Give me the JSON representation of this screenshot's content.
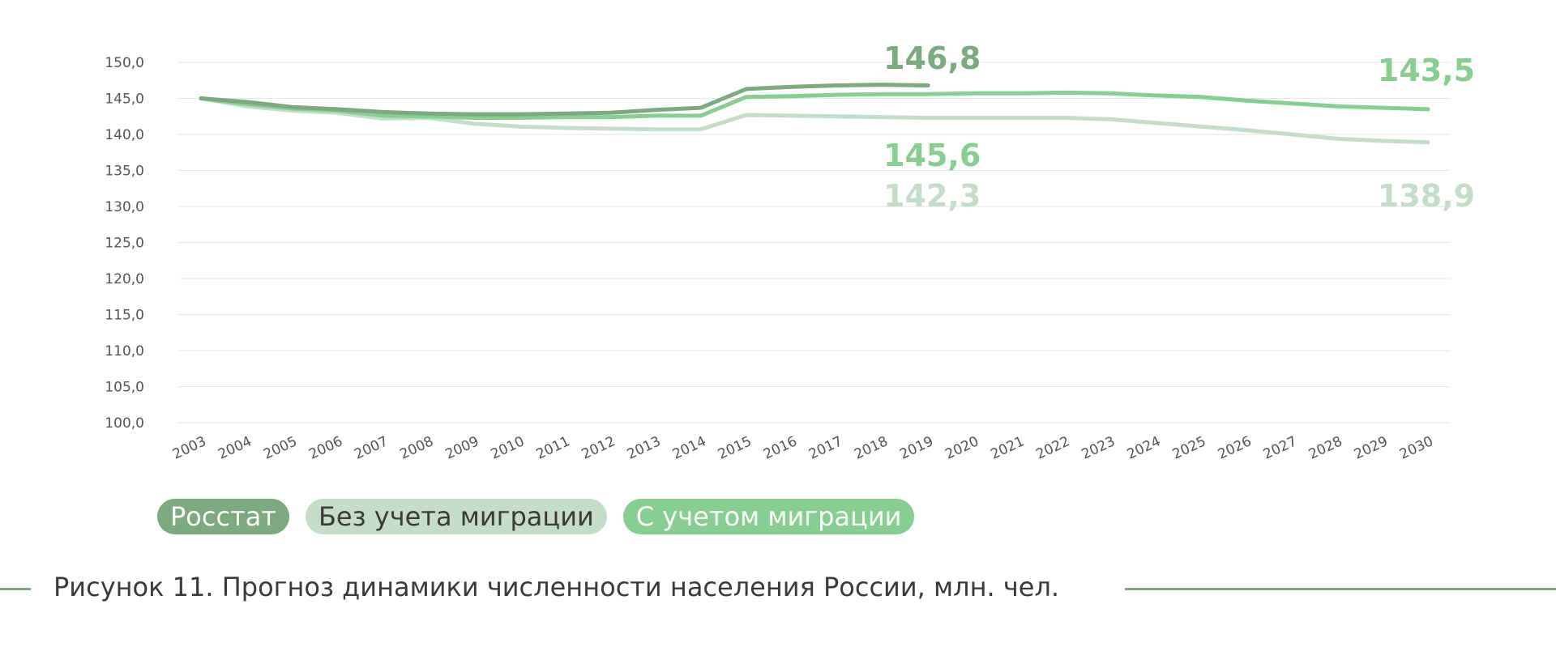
{
  "chart_data": {
    "type": "line",
    "categories": [
      "2003",
      "2004",
      "2005",
      "2006",
      "2007",
      "2008",
      "2009",
      "2010",
      "2011",
      "2012",
      "2013",
      "2014",
      "2015",
      "2016",
      "2017",
      "2018",
      "2019",
      "2020",
      "2021",
      "2022",
      "2023",
      "2024",
      "2025",
      "2026",
      "2027",
      "2028",
      "2029",
      "2030"
    ],
    "ylim": [
      100,
      150
    ],
    "yticks": [
      "100,0",
      "105,0",
      "110,0",
      "115,0",
      "120,0",
      "125,0",
      "130,0",
      "135,0",
      "140,0",
      "145,0",
      "150,0"
    ],
    "grid": true,
    "series": [
      {
        "name": "Росстат",
        "color": "#7aaa7e",
        "values": [
          145.0,
          144.5,
          143.8,
          143.5,
          143.1,
          142.9,
          142.8,
          142.8,
          142.9,
          143.0,
          143.4,
          143.7,
          146.3,
          146.6,
          146.8,
          146.9,
          146.8,
          null,
          null,
          null,
          null,
          null,
          null,
          null,
          null,
          null,
          null,
          null
        ]
      },
      {
        "name": "Без учета миграции",
        "color": "#c4ddc8",
        "values": [
          145.0,
          143.9,
          143.3,
          143.0,
          142.2,
          142.3,
          141.5,
          141.1,
          140.9,
          140.8,
          140.7,
          140.7,
          142.7,
          142.6,
          142.5,
          142.4,
          142.3,
          142.3,
          142.3,
          142.3,
          142.1,
          141.6,
          141.1,
          140.6,
          140.0,
          139.4,
          139.1,
          138.9
        ]
      },
      {
        "name": "С учетом миграции",
        "color": "#86cf90",
        "values": [
          145.0,
          144.2,
          143.6,
          143.3,
          142.6,
          142.5,
          142.3,
          142.3,
          142.4,
          142.4,
          142.6,
          142.6,
          145.2,
          145.3,
          145.5,
          145.6,
          145.6,
          145.7,
          145.7,
          145.8,
          145.7,
          145.4,
          145.2,
          144.7,
          144.3,
          143.9,
          143.7,
          143.5
        ]
      }
    ],
    "annotations": [
      {
        "text": "146,8",
        "series": 0,
        "at": "2019"
      },
      {
        "text": "145,6",
        "series": 2,
        "at": "2019"
      },
      {
        "text": "142,3",
        "series": 1,
        "at": "2019"
      },
      {
        "text": "143,5",
        "series": 2,
        "at": "2030"
      },
      {
        "text": "138,9",
        "series": 1,
        "at": "2030"
      }
    ]
  },
  "legend": [
    {
      "label": "Росстат",
      "bg": "#7aaa7e",
      "fg": "#ffffff"
    },
    {
      "label": "Без учета миграции",
      "bg": "#c4ddc8",
      "fg": "#3a3a3a"
    },
    {
      "label": "С учетом миграции",
      "bg": "#86cf90",
      "fg": "#ffffff"
    }
  ],
  "caption": "Рисунок 11. Прогноз динамики численности населения России, млн. чел.",
  "colors": {
    "accent_line": "#7aaa7e",
    "grid": "#e6e6e6",
    "tick_text": "#555555"
  }
}
